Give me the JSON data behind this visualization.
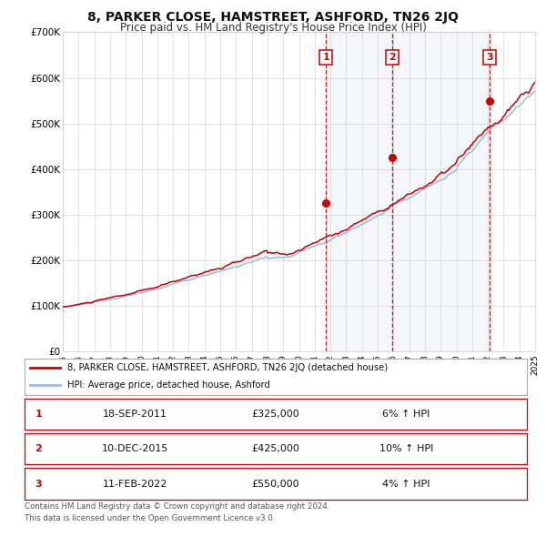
{
  "title": "8, PARKER CLOSE, HAMSTREET, ASHFORD, TN26 2JQ",
  "subtitle": "Price paid vs. HM Land Registry's House Price Index (HPI)",
  "line1_label": "8, PARKER CLOSE, HAMSTREET, ASHFORD, TN26 2JQ (detached house)",
  "line2_label": "HPI: Average price, detached house, Ashford",
  "line1_color": "#cc0000",
  "line2_color": "#99bbdd",
  "sale_color": "#cc0000",
  "vline_color": "#cc0000",
  "fill_color": "#ddeeff",
  "ylim": [
    0,
    700000
  ],
  "yticks": [
    0,
    100000,
    200000,
    300000,
    400000,
    500000,
    600000,
    700000
  ],
  "ytick_labels": [
    "£0",
    "£100K",
    "£200K",
    "£300K",
    "£400K",
    "£500K",
    "£600K",
    "£700K"
  ],
  "xmin": 1995,
  "xmax": 2025,
  "sales": [
    {
      "num": 1,
      "date_label": "18-SEP-2011",
      "date_x": 2011.72,
      "price": 325000,
      "pct": "6% ↑ HPI"
    },
    {
      "num": 2,
      "date_label": "10-DEC-2015",
      "date_x": 2015.94,
      "price": 425000,
      "pct": "10% ↑ HPI"
    },
    {
      "num": 3,
      "date_label": "11-FEB-2022",
      "date_x": 2022.12,
      "price": 550000,
      "pct": "4% ↑ HPI"
    }
  ],
  "sale_price_labels": [
    "£325,000",
    "£425,000",
    "£550,000"
  ],
  "plot_bg_color": "#ffffff",
  "grid_color": "#dddddd",
  "footer_line1": "Contains HM Land Registry data © Crown copyright and database right 2024.",
  "footer_line2": "This data is licensed under the Open Government Licence v3.0."
}
